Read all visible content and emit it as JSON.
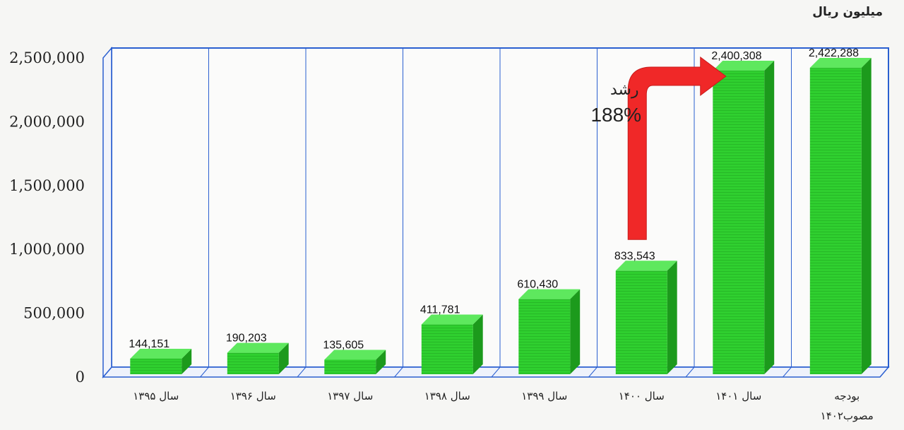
{
  "chart_data": {
    "type": "bar",
    "unit_label": "میلیون ریال",
    "categories": [
      [
        "سال ۱۳۹۵"
      ],
      [
        "سال ۱۳۹۶"
      ],
      [
        "سال ۱۳۹۷"
      ],
      [
        "سال ۱۳۹۸"
      ],
      [
        "سال ۱۳۹۹"
      ],
      [
        "سال ۱۴۰۰"
      ],
      [
        "سال ۱۴۰۱"
      ],
      [
        "بودجه",
        "مصوب۱۴۰۲"
      ]
    ],
    "values": [
      144151,
      190203,
      135605,
      411781,
      610430,
      833543,
      2400308,
      2422288
    ],
    "value_labels": [
      "144,151",
      "190,203",
      "135,605",
      "411,781",
      "610,430",
      "833,543",
      "2,400,308",
      "2,422,288"
    ],
    "y_ticks": [
      0,
      500000,
      1000000,
      1500000,
      2000000,
      2500000
    ],
    "y_tick_labels": [
      "0",
      "500,000",
      "1,000,000",
      "1,500,000",
      "2,000,000",
      "2,500,000"
    ],
    "ylim": [
      0,
      2500000
    ],
    "grid": true,
    "annotation": {
      "word": "رشد",
      "percent": "188%",
      "from_category": 5,
      "to_category": 6
    },
    "colors": {
      "bar": "#2fcf2f",
      "bar_side": "#1c9a1c",
      "bar_top": "#5ee85e",
      "frame": "#2a5fd0",
      "arrow": "#f02828"
    }
  }
}
